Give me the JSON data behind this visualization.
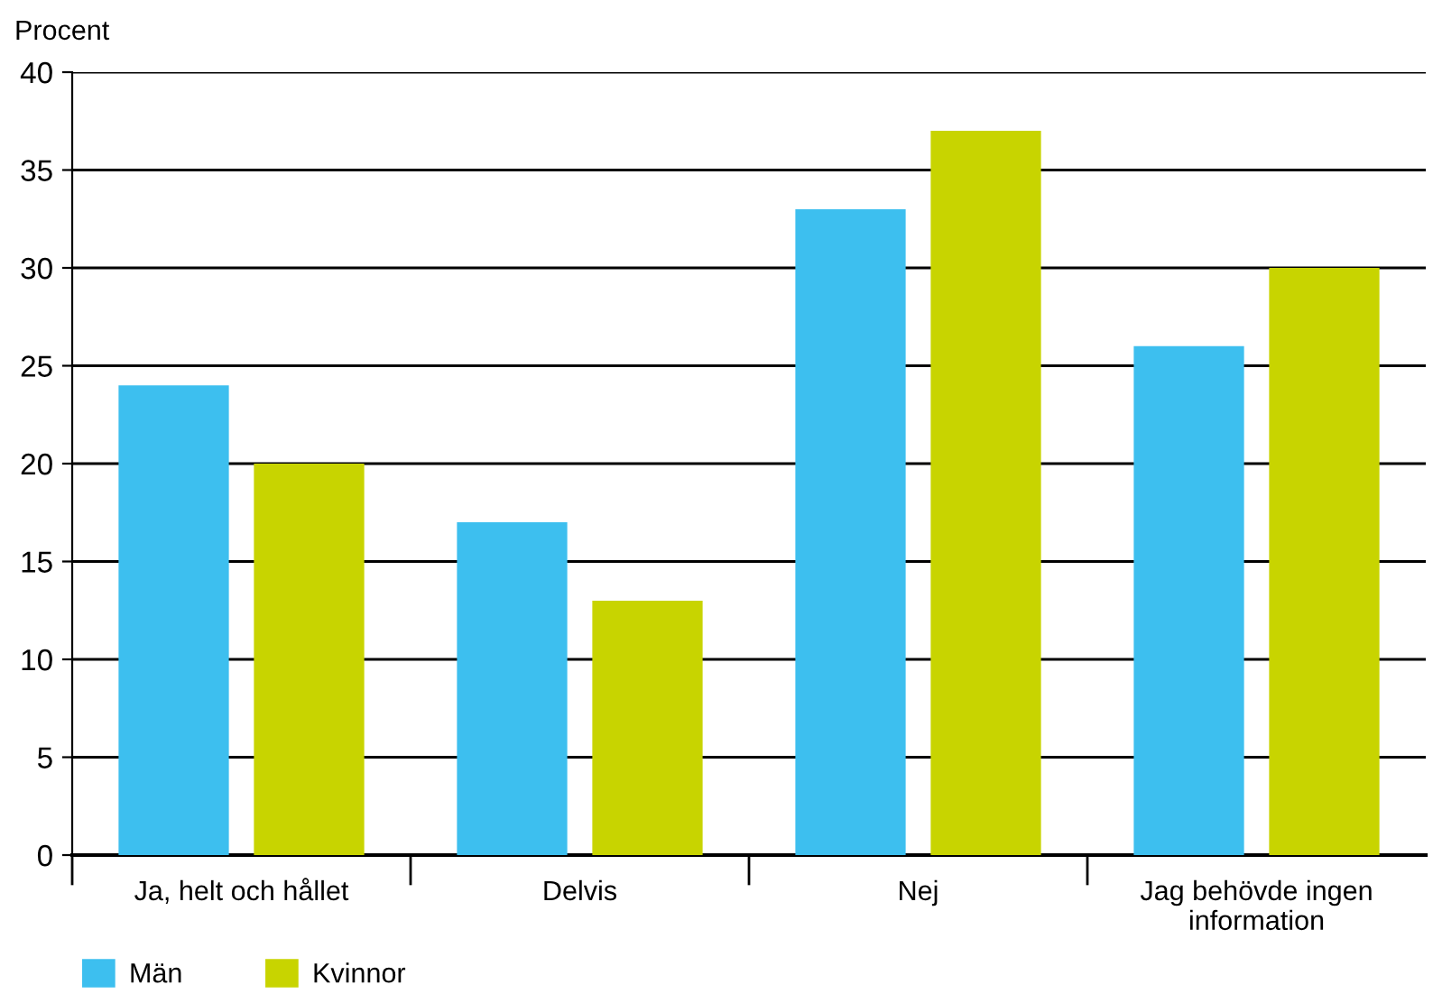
{
  "chart_data": {
    "type": "bar",
    "ylabel": "Procent",
    "categories": [
      "Ja, helt och hållet",
      "Delvis",
      "Nej",
      "Jag behövde ingen\ninformation"
    ],
    "series": [
      {
        "name": "Män",
        "color": "#3dbfef",
        "values": [
          24,
          17,
          33,
          26
        ]
      },
      {
        "name": "Kvinnor",
        "color": "#c8d400",
        "values": [
          20,
          13,
          37,
          30
        ]
      }
    ],
    "ylim": [
      0,
      40
    ],
    "yticks": [
      0,
      5,
      10,
      15,
      20,
      25,
      30,
      35,
      40
    ],
    "grid": "y",
    "legend": "bottom left"
  }
}
